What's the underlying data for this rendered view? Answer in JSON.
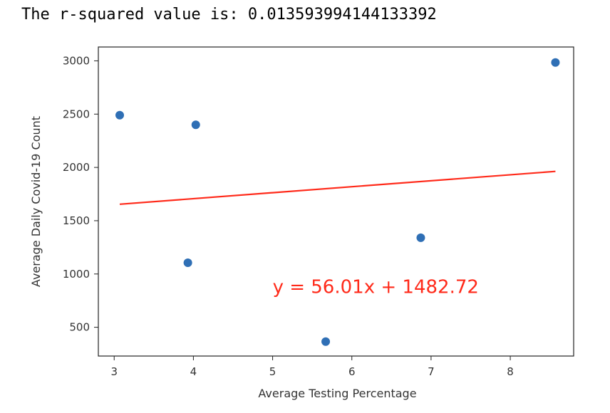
{
  "output": {
    "text": "The r-squared value is: 0.013593994144133392"
  },
  "chart_data": {
    "type": "scatter",
    "xlabel": "Average Testing Percentage",
    "ylabel": "Average Daily Covid-19 Count",
    "xlim": [
      2.8,
      8.8
    ],
    "ylim": [
      230,
      3130
    ],
    "xticks": [
      3,
      4,
      5,
      6,
      7,
      8
    ],
    "yticks": [
      500,
      1000,
      1500,
      2000,
      2500,
      3000
    ],
    "grid": false,
    "points": [
      {
        "x": 3.07,
        "y": 2490
      },
      {
        "x": 4.03,
        "y": 2400
      },
      {
        "x": 3.93,
        "y": 1105
      },
      {
        "x": 5.67,
        "y": 365
      },
      {
        "x": 6.87,
        "y": 1340
      },
      {
        "x": 8.57,
        "y": 2985
      }
    ],
    "regression": {
      "slope": 56.01,
      "intercept": 1482.72,
      "x_range": [
        3.07,
        8.57
      ],
      "equation_label": "y = 56.01x + 1482.72",
      "label_anchor": {
        "x": 5.0,
        "y": 820
      }
    },
    "colors": {
      "points": "#2f6fb5",
      "line": "#ff2a1a",
      "annotation": "#ff2a1a",
      "axes": "#222222"
    }
  }
}
